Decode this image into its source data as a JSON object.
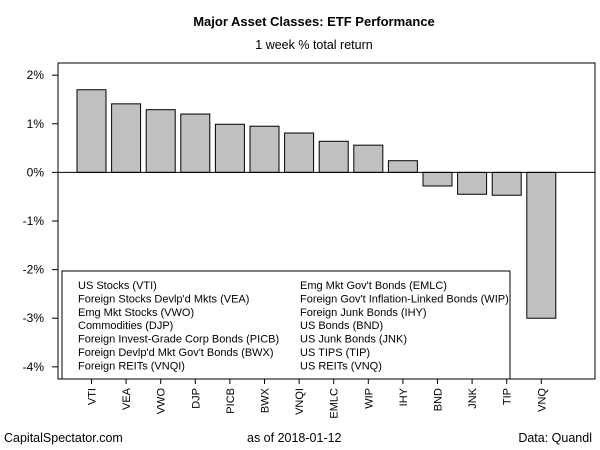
{
  "chart_data": {
    "type": "bar",
    "title": "Major Asset Classes: ETF Performance",
    "subtitle": "1 week % total return",
    "categories": [
      "VTI",
      "VEA",
      "VWO",
      "DJP",
      "PICB",
      "BWX",
      "VNQI",
      "EMLC",
      "WIP",
      "IHY",
      "BND",
      "JNK",
      "TIP",
      "VNQ"
    ],
    "values": [
      1.7,
      1.41,
      1.29,
      1.2,
      0.99,
      0.95,
      0.81,
      0.64,
      0.56,
      0.24,
      -0.28,
      -0.45,
      -0.47,
      -3.0
    ],
    "yticks": [
      "2%",
      "1%",
      "0%",
      "-1%",
      "-2%",
      "-3%",
      "-4%"
    ],
    "ylim": [
      -4.25,
      2.25
    ],
    "grid": false,
    "bar_color": "#c0c0c0",
    "legend_position": "bottom-left",
    "legend": [
      "US Stocks (VTI)",
      "Foreign Stocks Devlp'd Mkts (VEA)",
      "Emg Mkt Stocks (VWO)",
      "Commodities (DJP)",
      "Foreign Invest-Grade Corp Bonds (PICB)",
      "Foreign Devlp'd Mkt Gov't Bonds (BWX)",
      "Foreign REITs (VNQI)",
      "Emg Mkt Gov't Bonds (EMLC)",
      "Foreign Gov't Inflation-Linked Bonds (WIP)",
      "Foreign Junk Bonds (IHY)",
      "US Bonds (BND)",
      "US Junk Bonds (JNK)",
      "US TIPS (TIP)",
      "US REITs (VNQ)"
    ]
  },
  "footer": {
    "left": "CapitalSpectator.com",
    "middle": "as of   2018-01-12",
    "right": "Data: Quandl"
  }
}
